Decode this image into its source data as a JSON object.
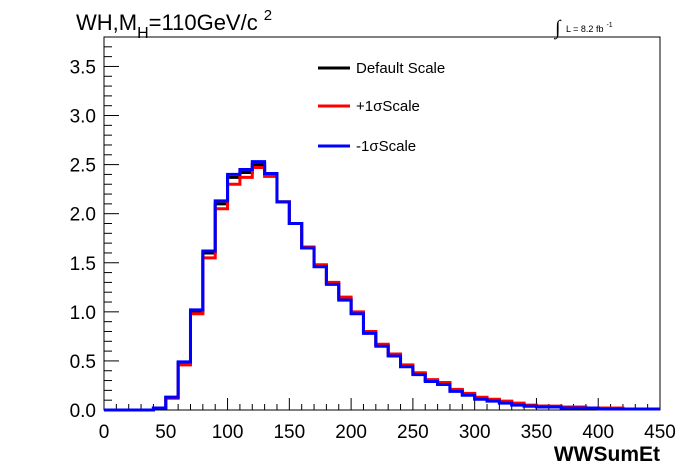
{
  "chart_data": {
    "type": "line",
    "title": {
      "main": "WH,M",
      "sub": "H",
      "rest": "=110GeV/c",
      "sup": "2"
    },
    "luminosity": {
      "symbol": "∫",
      "text": "L = 8.2 fb",
      "sup": "-1"
    },
    "xlabel": "WWSumEt",
    "ylabel": "",
    "xlim": [
      0,
      450
    ],
    "ylim": [
      0,
      3.8
    ],
    "bin_width": 10,
    "x_ticks": [
      "0",
      "50",
      "100",
      "150",
      "200",
      "250",
      "300",
      "350",
      "400",
      "450"
    ],
    "x_tick_values": [
      0,
      50,
      100,
      150,
      200,
      250,
      300,
      350,
      400,
      450
    ],
    "y_ticks": [
      "0.0",
      "0.5",
      "1.0",
      "1.5",
      "2.0",
      "2.5",
      "3.0",
      "3.5"
    ],
    "y_tick_values": [
      0.0,
      0.5,
      1.0,
      1.5,
      2.0,
      2.5,
      3.0,
      3.5
    ],
    "grid": false,
    "legend_position": "top-center",
    "series": [
      {
        "name": "Default Scale",
        "color": "#000000",
        "values": [
          0.0,
          0.0,
          0.0,
          0.0,
          0.02,
          0.13,
          0.48,
          1.0,
          1.6,
          2.1,
          2.37,
          2.42,
          2.5,
          2.4,
          2.12,
          1.9,
          1.65,
          1.47,
          1.29,
          1.13,
          0.99,
          0.79,
          0.66,
          0.56,
          0.45,
          0.37,
          0.3,
          0.27,
          0.2,
          0.16,
          0.12,
          0.1,
          0.08,
          0.06,
          0.04,
          0.04,
          0.03,
          0.03,
          0.02,
          0.02,
          0.02,
          0.01,
          0.01,
          0.01,
          0.01
        ]
      },
      {
        "name": "+1σScale",
        "color": "#ff0000",
        "values": [
          0.0,
          0.0,
          0.0,
          0.0,
          0.02,
          0.12,
          0.46,
          0.98,
          1.55,
          2.05,
          2.3,
          2.37,
          2.47,
          2.38,
          2.12,
          1.9,
          1.66,
          1.48,
          1.3,
          1.15,
          1.0,
          0.8,
          0.67,
          0.57,
          0.46,
          0.38,
          0.31,
          0.28,
          0.21,
          0.17,
          0.13,
          0.11,
          0.09,
          0.07,
          0.05,
          0.04,
          0.04,
          0.03,
          0.03,
          0.02,
          0.02,
          0.02,
          0.01,
          0.01,
          0.01
        ]
      },
      {
        "name": "-1σScale",
        "color": "#0000ff",
        "values": [
          0.0,
          0.0,
          0.0,
          0.0,
          0.02,
          0.13,
          0.49,
          1.02,
          1.62,
          2.13,
          2.4,
          2.45,
          2.53,
          2.41,
          2.12,
          1.9,
          1.65,
          1.46,
          1.28,
          1.12,
          0.98,
          0.78,
          0.65,
          0.55,
          0.44,
          0.36,
          0.29,
          0.26,
          0.19,
          0.15,
          0.11,
          0.09,
          0.07,
          0.05,
          0.04,
          0.03,
          0.03,
          0.02,
          0.02,
          0.02,
          0.01,
          0.01,
          0.01,
          0.01,
          0.01
        ]
      }
    ]
  }
}
